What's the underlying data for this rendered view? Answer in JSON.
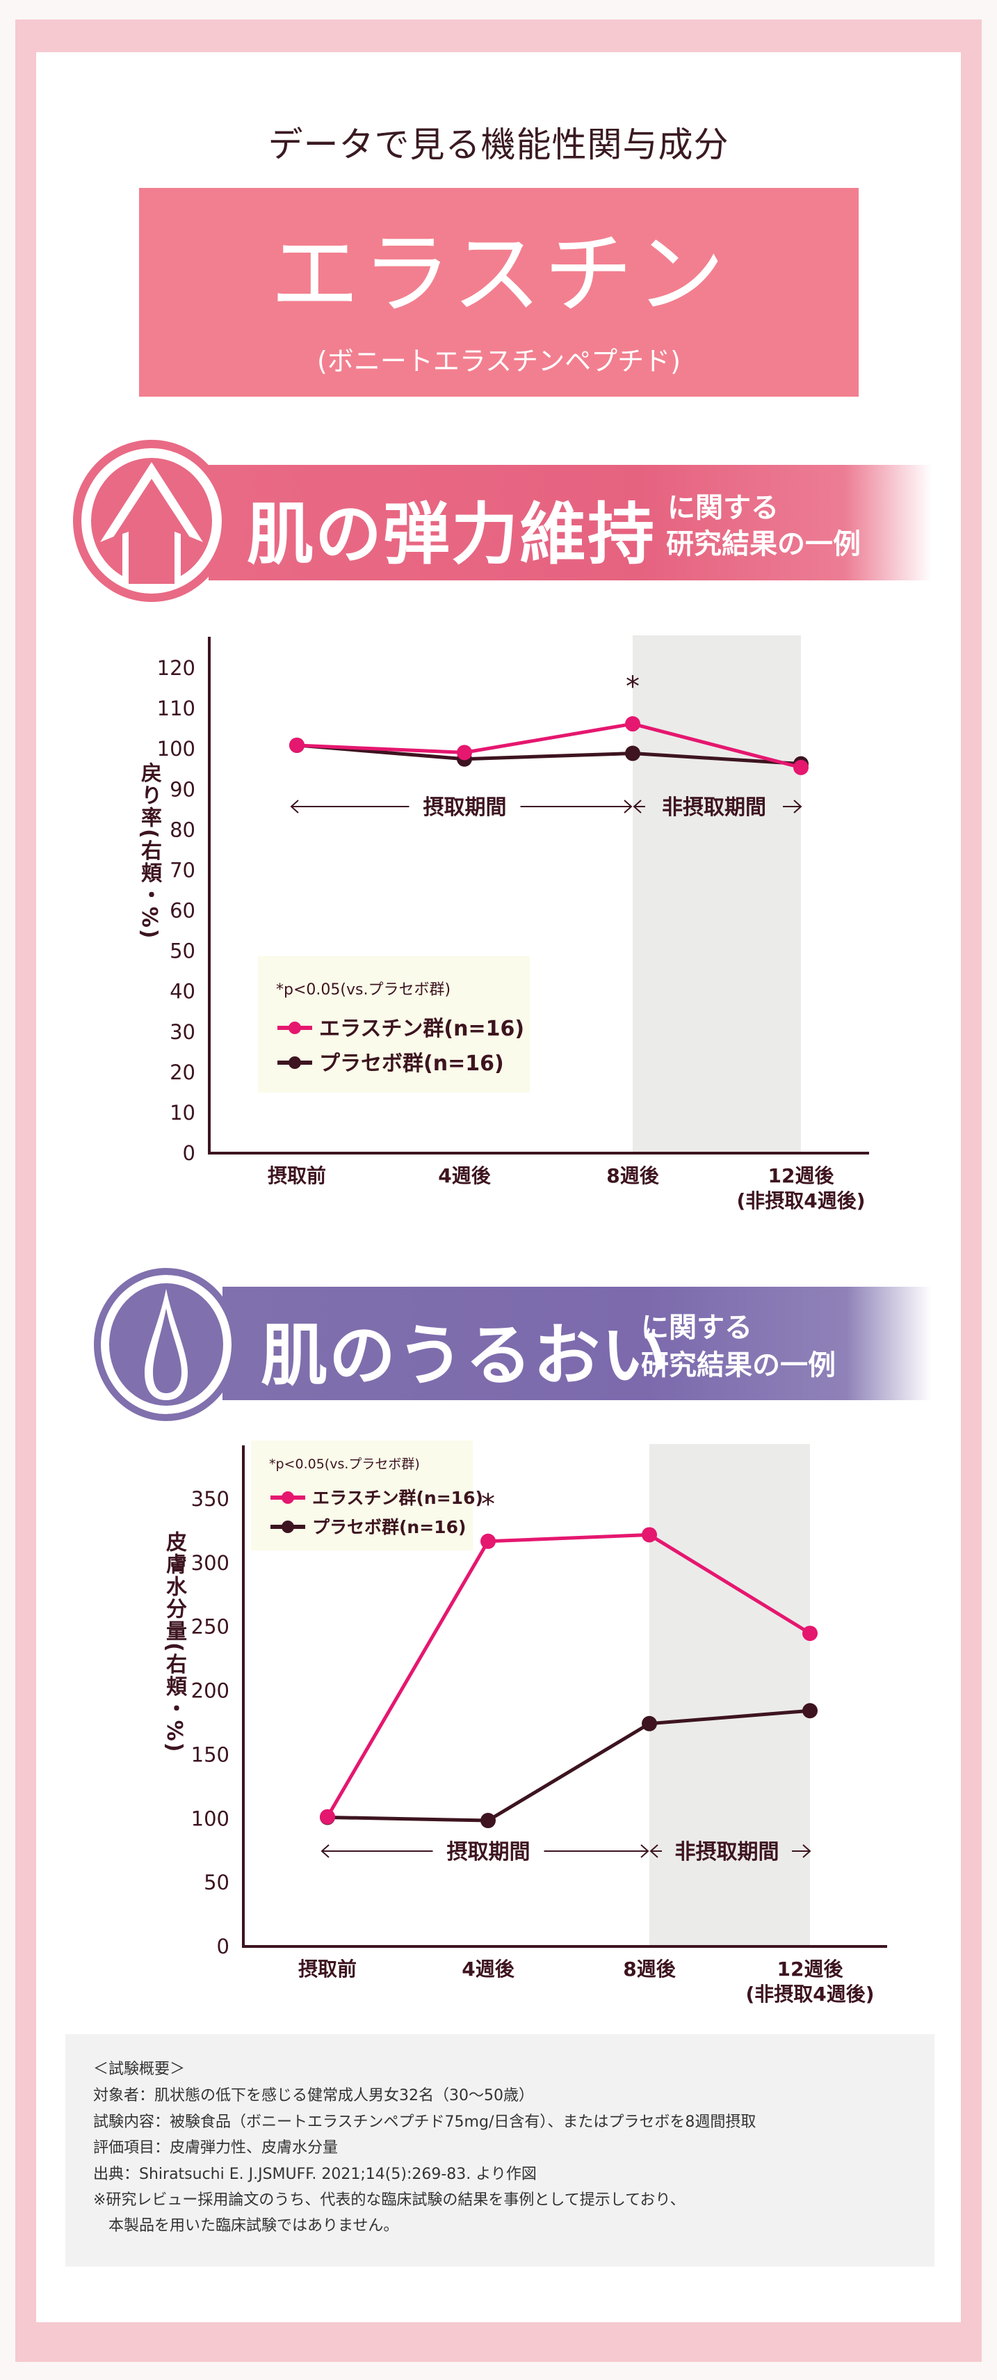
{
  "header": {
    "lead": "データで見る機能性関与成分",
    "title": "エラスチン",
    "subtitle": "(ボニートエラスチンペプチド)"
  },
  "section1": {
    "title": "肌の弾力維持",
    "sub1": "に関する",
    "sub2": "研究結果の一例",
    "icon": "up-arrow-icon",
    "color": "#e96a85"
  },
  "section2": {
    "title": "肌のうるおい",
    "sub1": "に関する",
    "sub2": "研究結果の一例",
    "icon": "water-drop-icon",
    "color": "#8070ad"
  },
  "chart_data": [
    {
      "type": "line",
      "ylabel": "戻り率(右頬・%)",
      "categories": [
        "摂取前",
        "4週後",
        "8週後",
        "12週後"
      ],
      "category_sublabels": [
        "",
        "",
        "",
        "(非摂取4週後)"
      ],
      "ylim": [
        0,
        120
      ],
      "yticks": [
        0,
        10,
        20,
        30,
        40,
        50,
        60,
        70,
        80,
        90,
        100,
        110,
        120
      ],
      "series": [
        {
          "name": "エラスチン群(n=16)",
          "color": "#e5176f",
          "values": [
            100.9,
            99.1,
            106.2,
            95.4
          ]
        },
        {
          "name": "プラセボ群(n=16)",
          "color": "#3d1420",
          "values": [
            100.9,
            97.5,
            98.9,
            96.3
          ]
        }
      ],
      "significance": {
        "marker": "*",
        "category_index": 2
      },
      "legend_note": "*p<0.05(vs.プラセボ群)",
      "legend_placement": "bottom-left",
      "period_intake": "摂取期間",
      "period_non_intake": "非摂取期間",
      "shaded_categories": [
        2,
        3
      ],
      "grid": false
    },
    {
      "type": "line",
      "ylabel": "皮膚水分量(右頬・%)",
      "categories": [
        "摂取前",
        "4週後",
        "8週後",
        "12週後"
      ],
      "category_sublabels": [
        "",
        "",
        "",
        "(非摂取4週後)"
      ],
      "ylim": [
        0,
        350
      ],
      "yticks": [
        0,
        50,
        100,
        150,
        200,
        250,
        300,
        350
      ],
      "series": [
        {
          "name": "エラスチン群(n=16)",
          "color": "#e5176f",
          "values": [
            101.4,
            316.9,
            322.0,
            244.9
          ]
        },
        {
          "name": "プラセボ群(n=16)",
          "color": "#3d1420",
          "values": [
            101.0,
            98.5,
            174.3,
            184.4
          ]
        }
      ],
      "significance": {
        "marker": "*",
        "category_index": 1
      },
      "legend_note": "*p<0.05(vs.プラセボ群)",
      "legend_placement": "top-left",
      "period_intake": "摂取期間",
      "period_non_intake": "非摂取期間",
      "shaded_categories": [
        2,
        3
      ],
      "grid": false
    }
  ],
  "notes": {
    "heading": "＜試験概要＞",
    "lines": [
      "対象者：肌状態の低下を感じる健常成人男女32名（30〜50歳）",
      "試験内容：被験食品（ボニートエラスチンペプチド75mg/日含有）、またはプラセボを8週間摂取",
      "評価項目：皮膚弾力性、皮膚水分量",
      "出典：Shiratsuchi E. J.JSMUFF. 2021;14(5):269-83. より作図",
      "※研究レビュー採用論文のうち、代表的な臨床試験の結果を事例として提示しており、",
      "　本製品を用いた臨床試験ではありません。"
    ]
  }
}
